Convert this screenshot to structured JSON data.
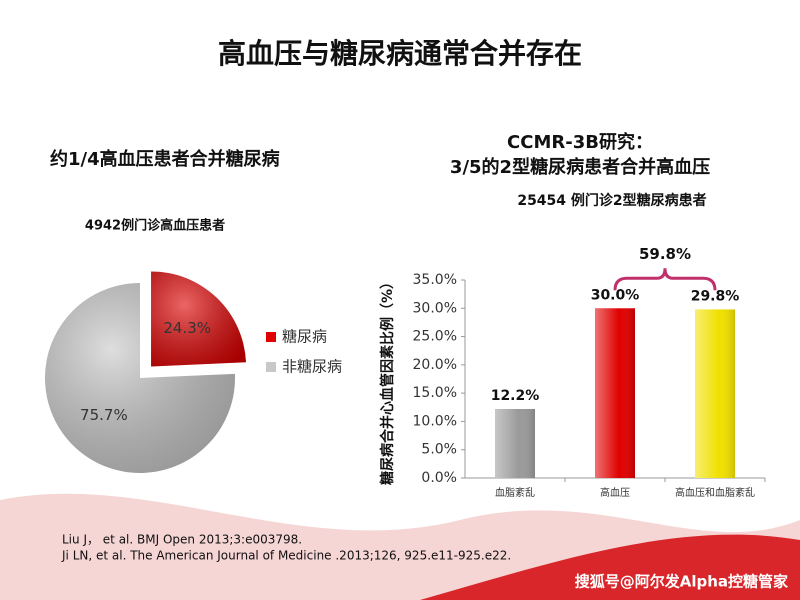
{
  "title": "高血压与糖尿病通常合并存在",
  "chart_data": [
    {
      "type": "pie",
      "title": "约1/4高血压患者合并糖尿病",
      "subtitle": "4942例门诊高血压患者",
      "categories": [
        "糖尿病",
        "非糖尿病"
      ],
      "values": [
        24.3,
        75.7
      ],
      "value_labels": [
        "24.3%",
        "75.7%"
      ],
      "colors": [
        "#e00000",
        "#c8c8c8"
      ],
      "exploded": [
        true,
        false
      ],
      "legend": "right"
    },
    {
      "type": "bar",
      "title": [
        "CCMR-3B研究：",
        "3/5的2型糖尿病患者合并高血压"
      ],
      "subtitle": "25454 例门诊2型糖尿病患者",
      "ylabel": "糖尿病合并心血管因素比例（%）",
      "categories": [
        "血脂紊乱",
        "高血压",
        "高血压和血脂紊乱"
      ],
      "values": [
        12.2,
        30.0,
        29.8
      ],
      "value_labels": [
        "12.2%",
        "30.0%",
        "29.8%"
      ],
      "colors": [
        "#9a9a9a",
        "#e00000",
        "#f0e000"
      ],
      "ylim": [
        0,
        35
      ],
      "yticks": [
        {
          "value": 0,
          "label": "0.0%"
        },
        {
          "value": 5,
          "label": "5.0%"
        },
        {
          "value": 10,
          "label": "10.0%"
        },
        {
          "value": 15,
          "label": "15.0%"
        },
        {
          "value": 20,
          "label": "20.0%"
        },
        {
          "value": 25,
          "label": "25.0%"
        },
        {
          "value": 30,
          "label": "30.0%"
        },
        {
          "value": 35,
          "label": "35.0%"
        }
      ],
      "annotation": {
        "text": "59.8%",
        "categories": [
          1,
          2
        ],
        "color": "#c0306a"
      }
    }
  ],
  "references": [
    "Liu J， et al. BMJ Open 2013;3:e003798.",
    "Ji LN, et al. The American Journal of Medicine .2013;126, 925.e11-925.e22."
  ],
  "watermark": "搜狐号@阿尔发Alpha控糖管家"
}
